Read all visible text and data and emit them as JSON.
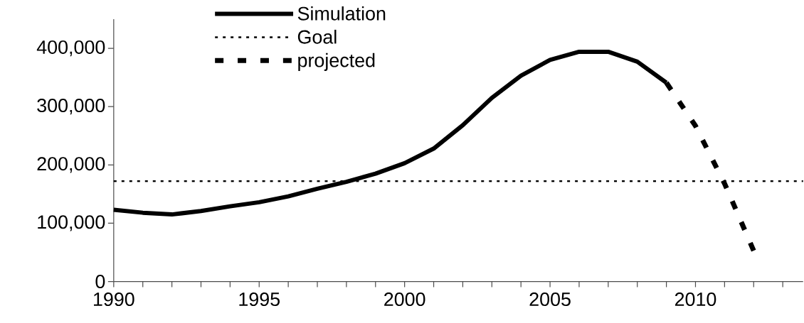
{
  "chart_data": {
    "type": "line",
    "x": [
      1990,
      1991,
      1992,
      1993,
      1994,
      1995,
      1996,
      1997,
      1998,
      1999,
      2000,
      2001,
      2002,
      2003,
      2004,
      2005,
      2006,
      2007,
      2008,
      2009,
      2010,
      2011,
      2012
    ],
    "series": [
      {
        "name": "Simulation",
        "color": "#000000",
        "line_style": "solid",
        "values": [
          123000,
          118000,
          115000,
          121000,
          129000,
          136000,
          146000,
          159000,
          171000,
          185000,
          203000,
          228000,
          268000,
          315000,
          353000,
          380000,
          394000,
          394000,
          377000,
          341000,
          null,
          null,
          null
        ]
      },
      {
        "name": "projected",
        "color": "#000000",
        "line_style": "dashed",
        "values": [
          null,
          null,
          null,
          null,
          null,
          null,
          null,
          null,
          null,
          null,
          null,
          null,
          null,
          null,
          null,
          null,
          null,
          null,
          null,
          341000,
          267000,
          168000,
          53000
        ]
      }
    ],
    "ref_lines": [
      {
        "axis": "y",
        "value": 172000,
        "label": "Goal",
        "color": "#000000",
        "line_style": "dotted"
      }
    ],
    "xlim": [
      1990,
      2013.7
    ],
    "xticks": [
      1990,
      {
        "value": 1991,
        "label": null
      },
      {
        "value": 1992,
        "label": null
      },
      {
        "value": 1993,
        "label": null
      },
      {
        "value": 1994,
        "label": null
      },
      1995,
      {
        "value": 1996,
        "label": null
      },
      {
        "value": 1997,
        "label": null
      },
      {
        "value": 1998,
        "label": null
      },
      {
        "value": 1999,
        "label": null
      },
      2000,
      {
        "value": 2001,
        "label": null
      },
      {
        "value": 2002,
        "label": null
      },
      {
        "value": 2003,
        "label": null
      },
      {
        "value": 2004,
        "label": null
      },
      2005,
      {
        "value": 2006,
        "label": null
      },
      {
        "value": 2007,
        "label": null
      },
      {
        "value": 2008,
        "label": null
      },
      {
        "value": 2009,
        "label": null
      },
      2010,
      {
        "value": 2011,
        "label": null
      },
      {
        "value": 2012,
        "label": null
      },
      {
        "value": 2013,
        "label": null
      }
    ],
    "ylim": [
      0,
      450000
    ],
    "yticks": [
      0,
      {
        "value": 100000,
        "label": "100,000"
      },
      {
        "value": 200000,
        "label": "200,000"
      },
      {
        "value": 300000,
        "label": "300,000"
      },
      {
        "value": 400000,
        "label": "400,000"
      }
    ],
    "grid": false,
    "legend": "top left",
    "marker": "none"
  }
}
